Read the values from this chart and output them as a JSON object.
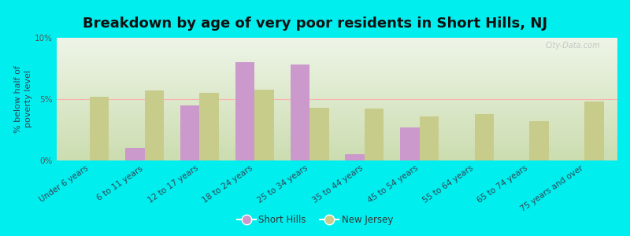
{
  "title": "Breakdown by age of very poor residents in Short Hills, NJ",
  "ylabel": "% below half of\npoverty level",
  "categories": [
    "Under 6 years",
    "6 to 11 years",
    "12 to 17 years",
    "18 to 24 years",
    "25 to 34 years",
    "35 to 44 years",
    "45 to 54 years",
    "55 to 64 years",
    "65 to 74 years",
    "75 years and over"
  ],
  "short_hills": [
    0.0,
    1.0,
    4.5,
    8.0,
    7.8,
    0.5,
    2.7,
    0.0,
    0.0,
    0.0
  ],
  "new_jersey": [
    5.2,
    5.7,
    5.5,
    5.8,
    4.3,
    4.2,
    3.6,
    3.8,
    3.2,
    4.8
  ],
  "short_hills_color": "#cc99cc",
  "new_jersey_color": "#c8cc8a",
  "background_outer": "#00eeee",
  "ylim": [
    0,
    10
  ],
  "yticks": [
    0,
    5,
    10
  ],
  "ytick_labels": [
    "0%",
    "5%",
    "10%"
  ],
  "bar_width": 0.35,
  "title_fontsize": 13,
  "axis_label_fontsize": 8,
  "tick_fontsize": 7.5,
  "legend_label_sh": "Short Hills",
  "legend_label_nj": "New Jersey",
  "watermark": "City-Data.com"
}
